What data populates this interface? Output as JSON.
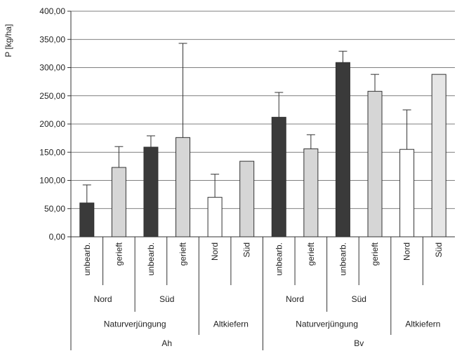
{
  "chart_data": {
    "type": "bar",
    "ylabel": "P [kg/ha]",
    "ylim": [
      0,
      400
    ],
    "yticks": [
      "0,00",
      "50,00",
      "100,00",
      "150,00",
      "200,00",
      "250,00",
      "300,00",
      "350,00",
      "400,00"
    ],
    "grid": true,
    "categories": [
      "unbearb.",
      "gerieft",
      "unbearb.",
      "gerieft",
      "Nord",
      "Süd",
      "unbearb.",
      "gerieft",
      "unbearb.",
      "gerieft",
      "Nord",
      "Süd"
    ],
    "values": [
      60,
      123,
      159,
      176,
      70,
      134,
      212,
      156,
      309,
      258,
      155,
      288
    ],
    "error_upper": [
      92,
      160,
      179,
      343,
      111,
      134,
      256,
      181,
      329,
      288,
      225,
      288
    ],
    "colors": [
      "#3a3a3a",
      "#d6d6d6",
      "#3a3a3a",
      "#d6d6d6",
      "#ffffff",
      "#d6d6d6",
      "#3a3a3a",
      "#d6d6d6",
      "#3a3a3a",
      "#d6d6d6",
      "#ffffff",
      "#e6e6e6"
    ],
    "groups_level2": [
      {
        "label": "Nord",
        "span": 2
      },
      {
        "label": "Süd",
        "span": 2
      },
      {
        "label": "",
        "span": 2
      },
      {
        "label": "Nord",
        "span": 2
      },
      {
        "label": "Süd",
        "span": 2
      },
      {
        "label": "",
        "span": 2
      }
    ],
    "groups_level3": [
      {
        "label": "Naturverjüngung",
        "span": 4
      },
      {
        "label": "Altkiefern",
        "span": 2
      },
      {
        "label": "Naturverjüngung",
        "span": 4
      },
      {
        "label": "Altkiefern",
        "span": 2
      }
    ],
    "groups_level4": [
      {
        "label": "Ah",
        "span": 6
      },
      {
        "label": "Bv",
        "span": 6
      }
    ]
  }
}
